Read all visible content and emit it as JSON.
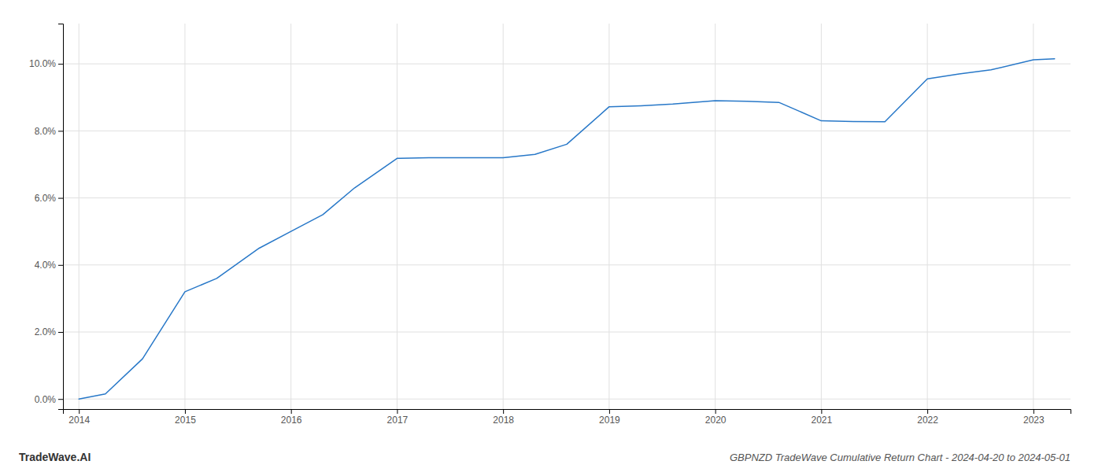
{
  "chart_data": {
    "type": "line",
    "title": "GBPNZD TradeWave Cumulative Return Chart - 2024-04-20 to 2024-05-01",
    "annotations": [
      "TradeWave.AI"
    ],
    "x": [
      2014,
      2014.25,
      2014.6,
      2015.0,
      2015.3,
      2015.7,
      2016.0,
      2016.3,
      2016.6,
      2017.0,
      2017.3,
      2017.7,
      2018.0,
      2018.3,
      2018.6,
      2019.0,
      2019.3,
      2019.6,
      2020.0,
      2020.3,
      2020.6,
      2021.0,
      2021.3,
      2021.6,
      2022.0,
      2022.3,
      2022.6,
      2023.0,
      2023.2
    ],
    "values": [
      0.0,
      0.15,
      1.2,
      3.2,
      3.6,
      4.5,
      5.0,
      5.5,
      6.3,
      7.18,
      7.2,
      7.2,
      7.2,
      7.3,
      7.6,
      8.72,
      8.75,
      8.8,
      8.9,
      8.88,
      8.85,
      8.3,
      8.28,
      8.27,
      9.55,
      9.7,
      9.82,
      10.12,
      10.15
    ],
    "color": "#2878c8",
    "xlim": [
      2013.85,
      2023.35
    ],
    "xticks": [
      2014,
      2015,
      2016,
      2017,
      2018,
      2019,
      2020,
      2021,
      2022,
      2023
    ],
    "ylim": [
      -0.3,
      11.2
    ],
    "yticks": [
      {
        "value": 0.0,
        "label": "0.0%"
      },
      {
        "value": 2.0,
        "label": "2.0%"
      },
      {
        "value": 4.0,
        "label": "4.0%"
      },
      {
        "value": 6.0,
        "label": "6.0%"
      },
      {
        "value": 8.0,
        "label": "8.0%"
      },
      {
        "value": 10.0,
        "label": "10.0%"
      }
    ],
    "grid": true
  }
}
